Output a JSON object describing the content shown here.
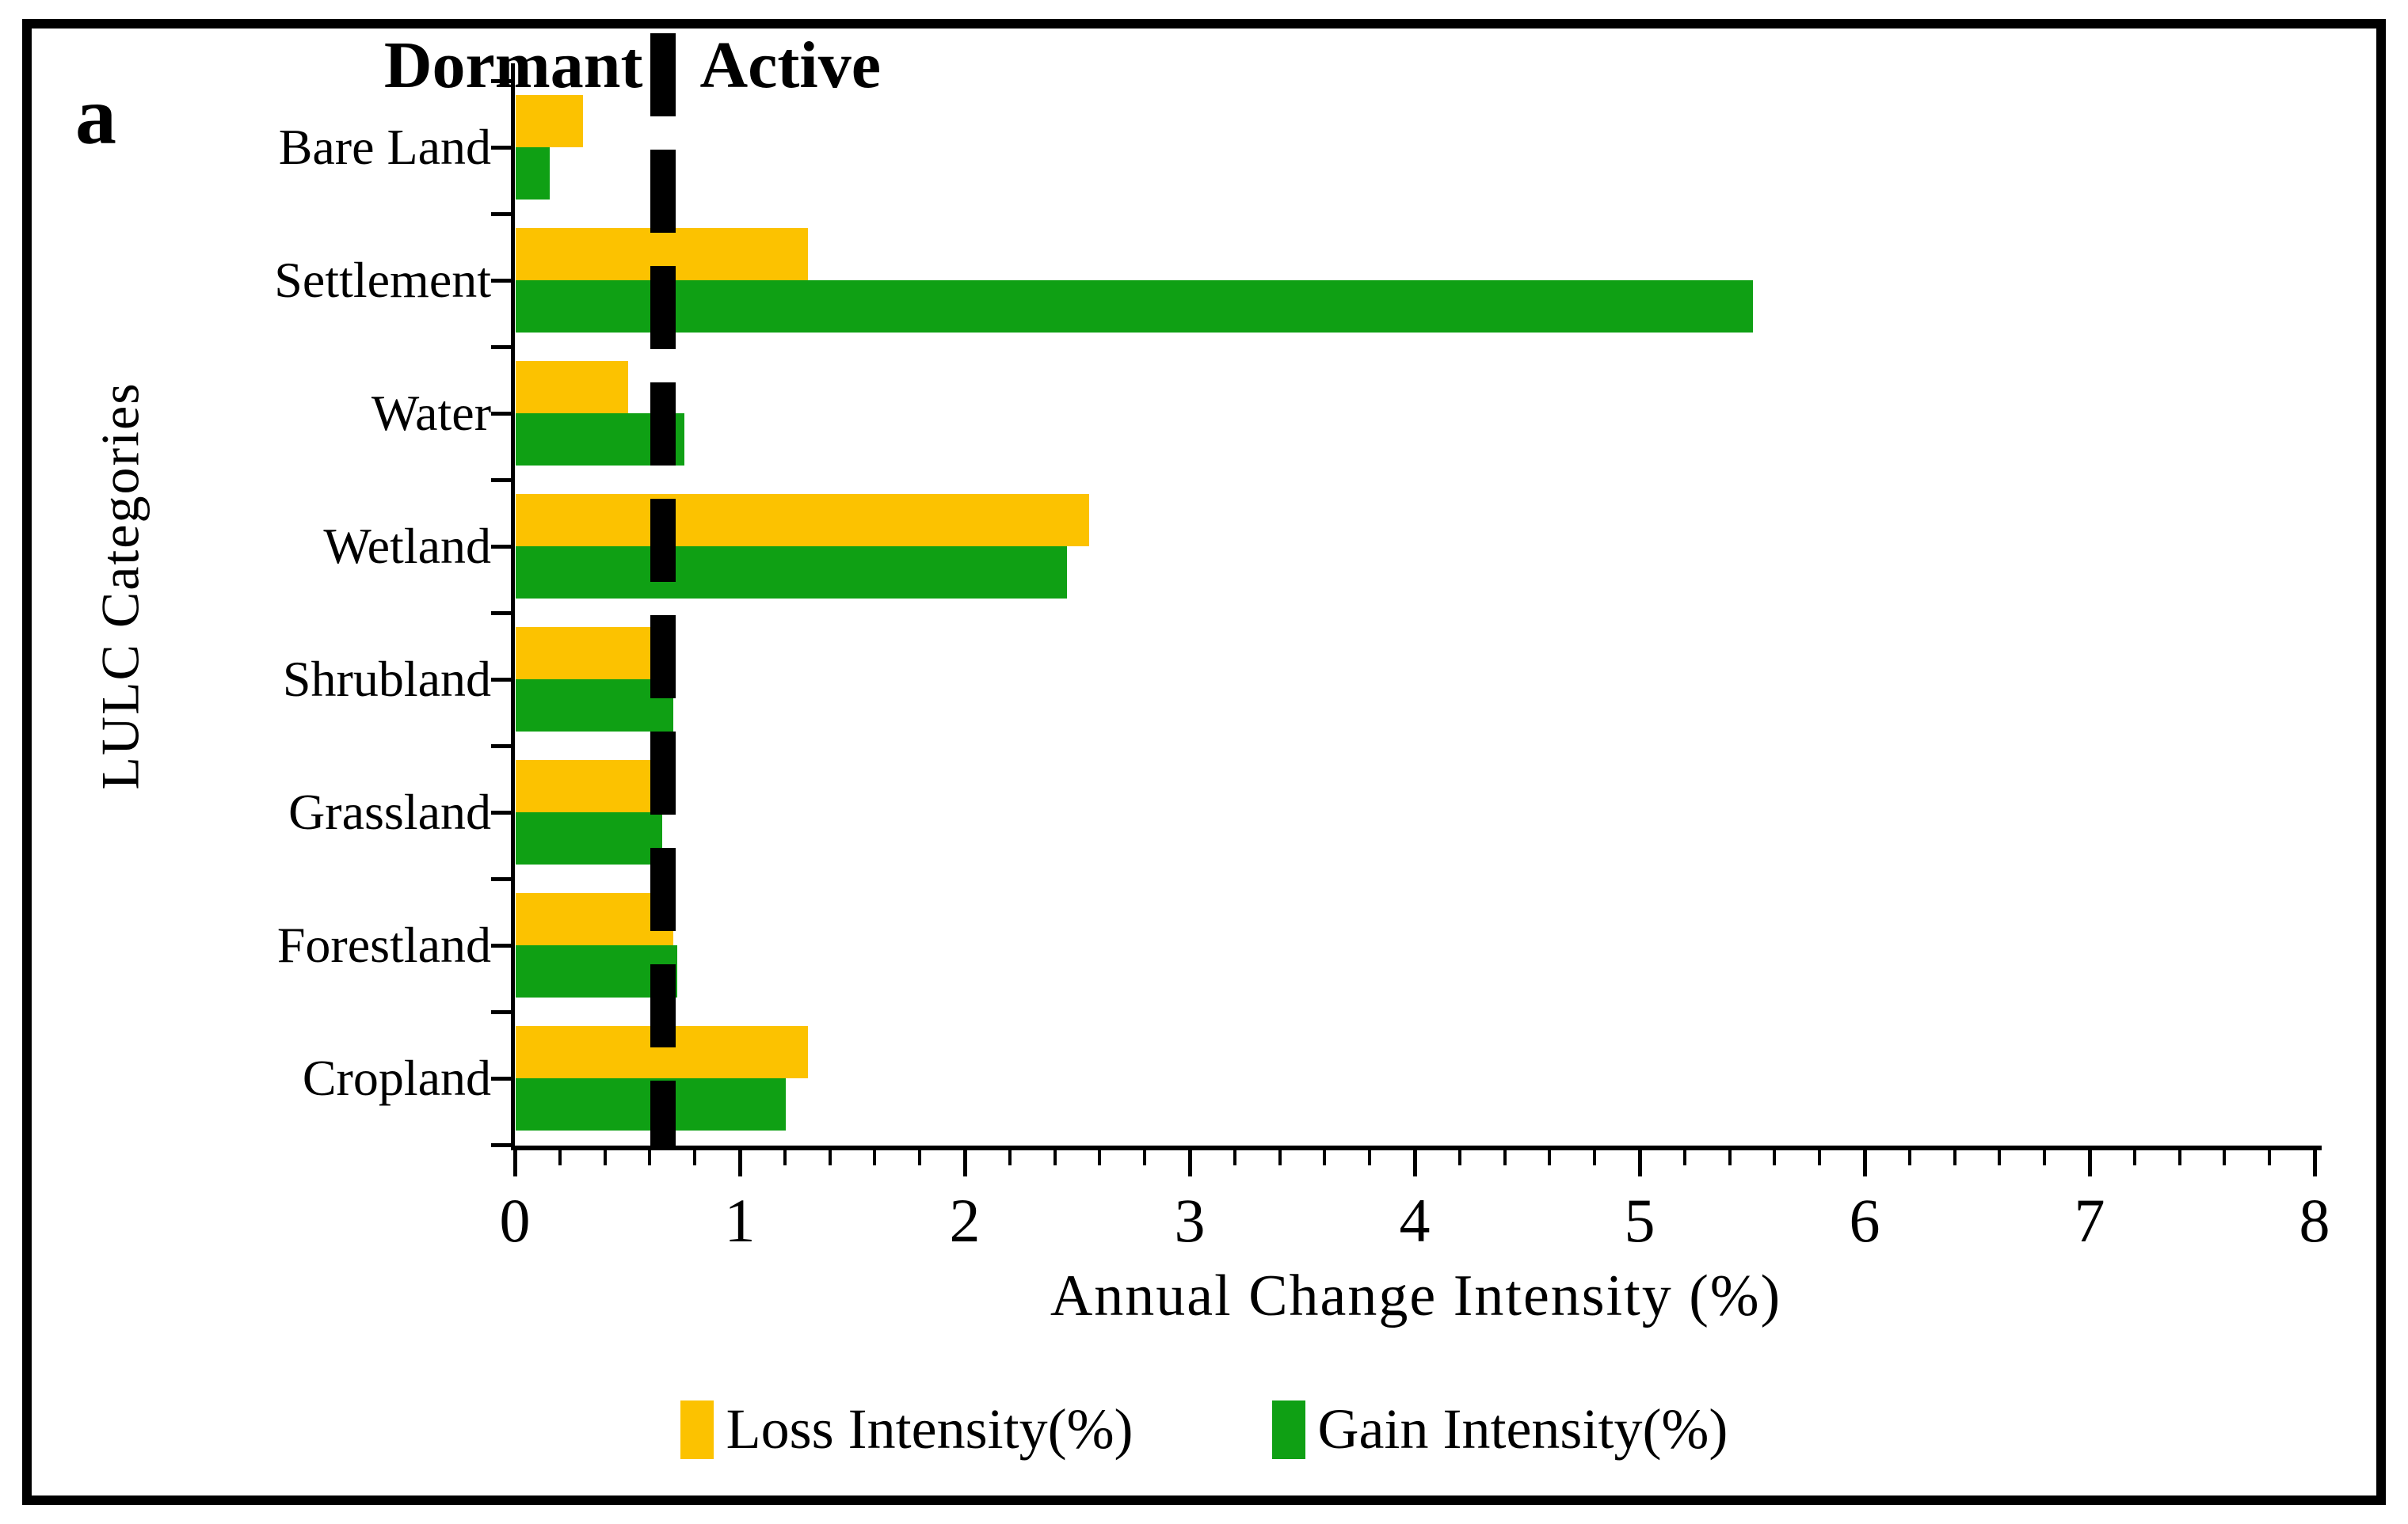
{
  "panel_label": "a",
  "chart_data": {
    "type": "bar",
    "orientation": "horizontal",
    "title": "",
    "xlabel": "Annual Change Intensity (%)",
    "ylabel": "LULC Categories",
    "categories": [
      "Bare Land",
      "Settlement",
      "Water",
      "Wetland",
      "Shrubland",
      "Grassland",
      "Forestland",
      "Cropland"
    ],
    "series": [
      {
        "name": "Loss Intensity(%)",
        "color": "#FCC200",
        "values": [
          0.3,
          1.3,
          0.5,
          2.55,
          0.6,
          0.6,
          0.7,
          1.3
        ]
      },
      {
        "name": "Gain Intensity(%)",
        "color": "#0FA014",
        "values": [
          0.15,
          5.5,
          0.75,
          2.45,
          0.7,
          0.65,
          0.72,
          1.2
        ]
      }
    ],
    "xlim": [
      0,
      8
    ],
    "x_ticks": [
      0,
      1,
      2,
      3,
      4,
      5,
      6,
      7,
      8
    ],
    "x_minor_step": 0.2,
    "grid": false,
    "legend_position": "bottom",
    "reference_line": {
      "value": 0.66,
      "style": "dashed",
      "color": "#000000",
      "label_left": "Dormant",
      "label_right": "Active"
    }
  }
}
